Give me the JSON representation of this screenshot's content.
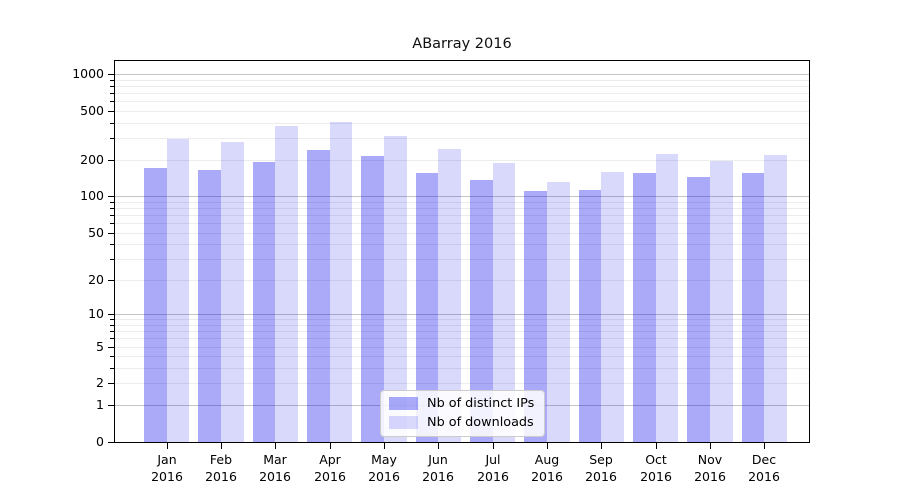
{
  "chart_data": {
    "type": "bar",
    "title": "ABarray 2016",
    "categories": [
      "Jan 2016",
      "Feb 2016",
      "Mar 2016",
      "Apr 2016",
      "May 2016",
      "Jun 2016",
      "Jul 2016",
      "Aug 2016",
      "Sep 2016",
      "Oct 2016",
      "Nov 2016",
      "Dec 2016"
    ],
    "months": [
      "Jan",
      "Feb",
      "Mar",
      "Apr",
      "May",
      "Jun",
      "Jul",
      "Aug",
      "Sep",
      "Oct",
      "Nov",
      "Dec"
    ],
    "year": "2016",
    "series": [
      {
        "name": "Nb of distinct IPs",
        "color": "#a8a8f9",
        "fill": "rgba(10,10,235,0.345)",
        "values": [
          171,
          164,
          192,
          238,
          213,
          155,
          136,
          111,
          113,
          155,
          143,
          155
        ]
      },
      {
        "name": "Nb of downloads",
        "color": "#dadaf9",
        "fill": "rgba(10,10,235,0.155)",
        "values": [
          297,
          281,
          374,
          406,
          312,
          243,
          188,
          130,
          159,
          224,
          196,
          216
        ]
      }
    ],
    "xlabel": "",
    "ylabel": "",
    "yscale": "log1p",
    "ylim": [
      0,
      1280
    ],
    "ytick_labels": [
      "1000",
      "500",
      "200",
      "100",
      "50",
      "20",
      "10",
      "5",
      "2",
      "1",
      "0"
    ],
    "ytick_values": [
      1000,
      500,
      200,
      100,
      50,
      20,
      10,
      5,
      2,
      1,
      0
    ],
    "minor_tick_values": [
      3,
      4,
      6,
      7,
      8,
      9,
      30,
      40,
      60,
      70,
      80,
      90,
      300,
      400,
      600,
      700,
      800,
      900
    ],
    "grid": true,
    "legend": {
      "position": "lower-center",
      "entries": [
        "Nb of distinct IPs",
        "Nb of downloads"
      ]
    },
    "style": {
      "major_grid_color": "#c4c4c4",
      "minor_grid_color": "#ececec",
      "axis_color": "#000000",
      "background": "#ffffff"
    }
  }
}
